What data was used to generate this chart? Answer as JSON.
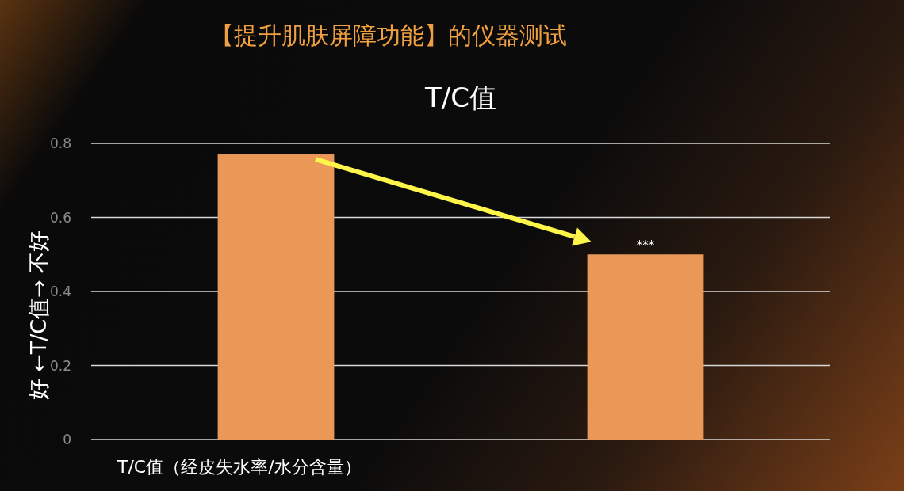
{
  "chart_data": {
    "type": "bar",
    "title": "【提升肌肤屏障功能】的仪器测试",
    "subtitle": "T/C值",
    "xlabel": "T/C值（经皮失水率/水分含量）",
    "ylabel": "好 ←T/C值→ 不好",
    "categories": [
      null,
      null
    ],
    "values": [
      0.77,
      0.5
    ],
    "color": "#e99858",
    "ylim": [
      0,
      0.8
    ],
    "yticks": [
      0,
      0.2,
      0.4,
      0.6,
      0.8
    ],
    "grid": "y",
    "annotations": [
      {
        "text": "***",
        "y": 0.5
      }
    ]
  }
}
